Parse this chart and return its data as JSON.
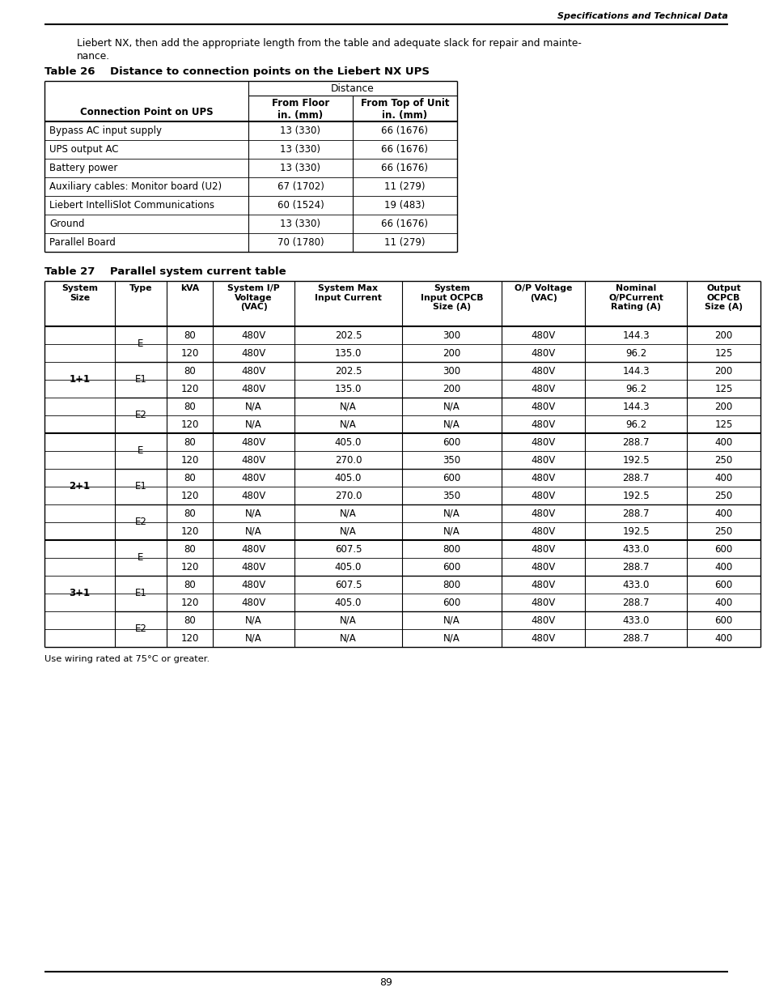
{
  "page_header_right": "Specifications and Technical Data",
  "intro_line1": "Liebert NX, then add the appropriate length from the table and adequate slack for repair and mainte-",
  "intro_line2": "nance.",
  "table26_title": "Table 26    Distance to connection points on the Liebert NX UPS",
  "table26_rows": [
    [
      "Bypass AC input supply",
      "13 (330)",
      "66 (1676)"
    ],
    [
      "UPS output AC",
      "13 (330)",
      "66 (1676)"
    ],
    [
      "Battery power",
      "13 (330)",
      "66 (1676)"
    ],
    [
      "Auxiliary cables: Monitor board (U2)",
      "67 (1702)",
      "11 (279)"
    ],
    [
      "Liebert IntelliSlot Communications",
      "60 (1524)",
      "19 (483)"
    ],
    [
      "Ground",
      "13 (330)",
      "66 (1676)"
    ],
    [
      "Parallel Board",
      "70 (1780)",
      "11 (279)"
    ]
  ],
  "table27_title": "Table 27    Parallel system current table",
  "table27_col_headers": [
    "System\nSize",
    "Type",
    "kVA",
    "System I/P\nVoltage\n(VAC)",
    "System Max\nInput Current",
    "System\nInput OCPCB\nSize (A)",
    "O/P Voltage\n(VAC)",
    "Nominal\nO/PCurrent\nRating (A)",
    "Output\nOCPCB\nSize (A)"
  ],
  "table27_rows": [
    [
      "1+1",
      "E",
      "80",
      "480V",
      "202.5",
      "300",
      "480V",
      "144.3",
      "200"
    ],
    [
      "1+1",
      "E",
      "120",
      "480V",
      "135.0",
      "200",
      "480V",
      "96.2",
      "125"
    ],
    [
      "1+1",
      "E1",
      "80",
      "480V",
      "202.5",
      "300",
      "480V",
      "144.3",
      "200"
    ],
    [
      "1+1",
      "E1",
      "120",
      "480V",
      "135.0",
      "200",
      "480V",
      "96.2",
      "125"
    ],
    [
      "1+1",
      "E2",
      "80",
      "N/A",
      "N/A",
      "N/A",
      "480V",
      "144.3",
      "200"
    ],
    [
      "1+1",
      "E2",
      "120",
      "N/A",
      "N/A",
      "N/A",
      "480V",
      "96.2",
      "125"
    ],
    [
      "2+1",
      "E",
      "80",
      "480V",
      "405.0",
      "600",
      "480V",
      "288.7",
      "400"
    ],
    [
      "2+1",
      "E",
      "120",
      "480V",
      "270.0",
      "350",
      "480V",
      "192.5",
      "250"
    ],
    [
      "2+1",
      "E1",
      "80",
      "480V",
      "405.0",
      "600",
      "480V",
      "288.7",
      "400"
    ],
    [
      "2+1",
      "E1",
      "120",
      "480V",
      "270.0",
      "350",
      "480V",
      "192.5",
      "250"
    ],
    [
      "2+1",
      "E2",
      "80",
      "N/A",
      "N/A",
      "N/A",
      "480V",
      "288.7",
      "400"
    ],
    [
      "2+1",
      "E2",
      "120",
      "N/A",
      "N/A",
      "N/A",
      "480V",
      "192.5",
      "250"
    ],
    [
      "3+1",
      "E",
      "80",
      "480V",
      "607.5",
      "800",
      "480V",
      "433.0",
      "600"
    ],
    [
      "3+1",
      "E",
      "120",
      "480V",
      "405.0",
      "600",
      "480V",
      "288.7",
      "400"
    ],
    [
      "3+1",
      "E1",
      "80",
      "480V",
      "607.5",
      "800",
      "480V",
      "433.0",
      "600"
    ],
    [
      "3+1",
      "E1",
      "120",
      "480V",
      "405.0",
      "600",
      "480V",
      "288.7",
      "400"
    ],
    [
      "3+1",
      "E2",
      "80",
      "N/A",
      "N/A",
      "N/A",
      "480V",
      "433.0",
      "600"
    ],
    [
      "3+1",
      "E2",
      "120",
      "N/A",
      "N/A",
      "N/A",
      "480V",
      "288.7",
      "400"
    ]
  ],
  "footnote": "Use wiring rated at 75°C or greater.",
  "page_number": "89",
  "bg_color": "#ffffff"
}
